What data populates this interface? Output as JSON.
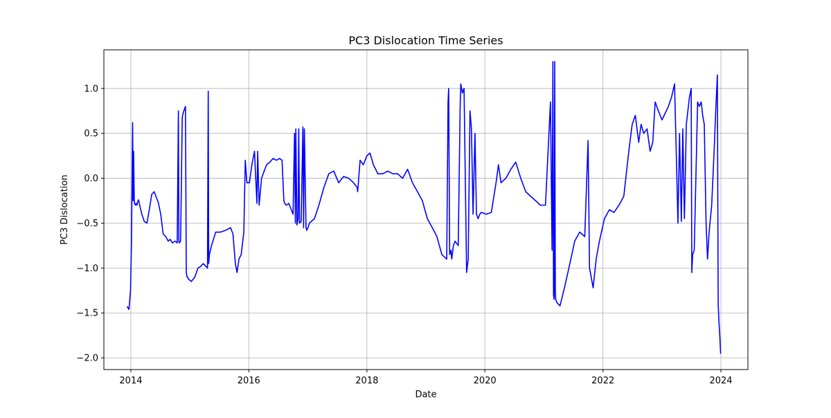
{
  "chart_data": {
    "type": "line",
    "title": "PC3 Dislocation Time Series",
    "xlabel": "Date",
    "ylabel": "PC3 Dislocation",
    "xlim": [
      "2013-07-18",
      "2024-06-16"
    ],
    "ylim": [
      -2.13,
      1.43
    ],
    "x_ticks": [
      "2014",
      "2016",
      "2018",
      "2020",
      "2022",
      "2024"
    ],
    "y_ticks": [
      -2.0,
      -1.5,
      -1.0,
      -0.5,
      0.0,
      0.5,
      1.0
    ],
    "y_tick_labels": [
      "−2.0",
      "−1.5",
      "−1.0",
      "−0.5",
      "0.0",
      "0.5",
      "1.0"
    ],
    "grid": true,
    "legend": "none",
    "colors": {
      "line": "#0000ff",
      "grid": "#b0b0b0",
      "axes": "#000000"
    },
    "series": [
      {
        "x": [
          "2013-12-10",
          "2013-12-20",
          "2013-12-30",
          "2014-01-05",
          "2014-01-12",
          "2014-01-15",
          "2014-01-18",
          "2014-01-22",
          "2014-01-24",
          "2014-01-28",
          "2014-02-02",
          "2014-02-08",
          "2014-02-12",
          "2014-02-18",
          "2014-02-22",
          "2014-03-10",
          "2014-03-25",
          "2014-04-10",
          "2014-04-25",
          "2014-05-10",
          "2014-05-25",
          "2014-06-05",
          "2014-06-20",
          "2014-07-05",
          "2014-07-20",
          "2014-08-05",
          "2014-08-20",
          "2014-09-01",
          "2014-09-15",
          "2014-10-01",
          "2014-10-15",
          "2014-10-22",
          "2014-10-25",
          "2014-10-28",
          "2014-11-05",
          "2014-11-15",
          "2014-11-20",
          "2014-11-25",
          "2014-12-05",
          "2014-12-10",
          "2014-12-15",
          "2014-12-18",
          "2014-12-22",
          "2015-01-10",
          "2015-02-01",
          "2015-02-20",
          "2015-03-10",
          "2015-03-25",
          "2015-04-10",
          "2015-04-20",
          "2015-04-25",
          "2015-04-28",
          "2015-05-02",
          "2015-05-15",
          "2015-06-10",
          "2015-07-10",
          "2015-08-10",
          "2015-09-10",
          "2015-09-25",
          "2015-10-10",
          "2015-10-20",
          "2015-11-01",
          "2015-11-15",
          "2015-12-01",
          "2015-12-10",
          "2015-12-20",
          "2016-01-05",
          "2016-01-20",
          "2016-02-05",
          "2016-02-20",
          "2016-02-25",
          "2016-03-05",
          "2016-03-20",
          "2016-04-05",
          "2016-04-20",
          "2016-05-10",
          "2016-05-30",
          "2016-06-20",
          "2016-07-10",
          "2016-07-25",
          "2016-08-05",
          "2016-08-10",
          "2016-08-20",
          "2016-09-05",
          "2016-09-20",
          "2016-10-01",
          "2016-10-10",
          "2016-10-15",
          "2016-10-18",
          "2016-10-25",
          "2016-11-01",
          "2016-11-05",
          "2016-11-10",
          "2016-11-20",
          "2016-12-01",
          "2016-12-05",
          "2016-12-10",
          "2016-12-20",
          "2016-12-25",
          "2017-01-01",
          "2017-01-10",
          "2017-02-10",
          "2017-03-10",
          "2017-04-10",
          "2017-05-10",
          "2017-06-10",
          "2017-07-10",
          "2017-08-10",
          "2017-09-10",
          "2017-10-10",
          "2017-11-01",
          "2017-11-05",
          "2017-11-20",
          "2017-12-10",
          "2018-01-01",
          "2018-01-20",
          "2018-02-10",
          "2018-03-10",
          "2018-04-10",
          "2018-05-10",
          "2018-06-10",
          "2018-07-10",
          "2018-08-10",
          "2018-09-10",
          "2018-10-10",
          "2018-11-10",
          "2018-12-10",
          "2019-01-10",
          "2019-02-10",
          "2019-03-10",
          "2019-04-10",
          "2019-05-10",
          "2019-05-18",
          "2019-05-22",
          "2019-05-28",
          "2019-06-05",
          "2019-06-10",
          "2019-06-20",
          "2019-07-01",
          "2019-07-20",
          "2019-08-01",
          "2019-08-05",
          "2019-08-15",
          "2019-08-25",
          "2019-09-10",
          "2019-09-20",
          "2019-10-01",
          "2019-10-10",
          "2019-10-20",
          "2019-11-01",
          "2019-11-10",
          "2019-11-20",
          "2019-12-01",
          "2019-12-10",
          "2020-01-10",
          "2020-02-10",
          "2020-03-10",
          "2020-03-25",
          "2020-04-10",
          "2020-05-10",
          "2020-06-10",
          "2020-07-10",
          "2020-08-10",
          "2020-09-10",
          "2020-10-10",
          "2020-11-10",
          "2020-12-10",
          "2021-01-10",
          "2021-02-10",
          "2021-02-20",
          "2021-02-25",
          "2021-03-01",
          "2021-03-05",
          "2021-03-08",
          "2021-03-12",
          "2021-03-15",
          "2021-03-20",
          "2021-04-10",
          "2021-05-10",
          "2021-06-10",
          "2021-07-10",
          "2021-08-10",
          "2021-09-10",
          "2021-10-01",
          "2021-10-10",
          "2021-10-15",
          "2021-10-20",
          "2021-11-01",
          "2021-11-20",
          "2021-12-10",
          "2022-01-10",
          "2022-02-10",
          "2022-03-10",
          "2022-04-10",
          "2022-05-10",
          "2022-06-10",
          "2022-07-01",
          "2022-07-20",
          "2022-08-10",
          "2022-08-25",
          "2022-09-10",
          "2022-10-01",
          "2022-10-20",
          "2022-11-05",
          "2022-11-20",
          "2022-12-10",
          "2023-01-01",
          "2023-01-20",
          "2023-02-10",
          "2023-03-01",
          "2023-03-20",
          "2023-04-10",
          "2023-04-20",
          "2023-05-01",
          "2023-05-10",
          "2023-05-20",
          "2023-06-01",
          "2023-06-20",
          "2023-07-01",
          "2023-07-05",
          "2023-07-10",
          "2023-07-20",
          "2023-08-10",
          "2023-08-20",
          "2023-09-01",
          "2023-09-10",
          "2023-09-20",
          "2023-10-01",
          "2023-10-10",
          "2023-10-20",
          "2023-11-05",
          "2023-11-20",
          "2023-12-01",
          "2023-12-10",
          "2023-12-15",
          "2023-12-20",
          "2023-12-25",
          "2023-12-30"
        ],
        "y": [
          -1.43,
          -1.46,
          -1.25,
          -0.7,
          0.62,
          -0.25,
          0.3,
          -0.25,
          -0.28,
          -0.3,
          -0.28,
          -0.3,
          -0.26,
          -0.24,
          -0.28,
          -0.4,
          -0.48,
          -0.5,
          -0.35,
          -0.18,
          -0.15,
          -0.2,
          -0.27,
          -0.4,
          -0.62,
          -0.65,
          -0.7,
          -0.68,
          -0.72,
          -0.7,
          -0.72,
          0.75,
          -0.7,
          -0.72,
          -0.7,
          0.68,
          0.72,
          0.75,
          0.8,
          -1.05,
          -1.1,
          -1.1,
          -1.12,
          -1.15,
          -1.1,
          -1.0,
          -0.98,
          -0.95,
          -0.98,
          -1.0,
          0.97,
          -0.95,
          -0.85,
          -0.75,
          -0.6,
          -0.6,
          -0.58,
          -0.55,
          -0.62,
          -0.95,
          -1.05,
          -0.9,
          -0.85,
          -0.6,
          0.2,
          -0.05,
          -0.05,
          0.15,
          0.3,
          -0.28,
          0.3,
          -0.3,
          0.0,
          0.08,
          0.15,
          0.18,
          0.22,
          0.2,
          0.22,
          0.2,
          -0.25,
          -0.28,
          -0.3,
          -0.28,
          -0.35,
          -0.4,
          0.5,
          -0.5,
          0.55,
          -0.52,
          -0.45,
          0.55,
          -0.5,
          -0.48,
          0.57,
          -0.55,
          0.55,
          -0.55,
          -0.58,
          -0.55,
          -0.5,
          -0.45,
          -0.3,
          -0.1,
          0.05,
          0.08,
          -0.05,
          0.02,
          0.0,
          -0.05,
          -0.1,
          -0.15,
          0.2,
          0.15,
          0.25,
          0.28,
          0.15,
          0.05,
          0.05,
          0.08,
          0.05,
          0.05,
          0.0,
          0.1,
          -0.05,
          -0.15,
          -0.25,
          -0.45,
          -0.55,
          -0.65,
          -0.85,
          -0.9,
          0.85,
          1.0,
          -0.85,
          -0.8,
          -0.9,
          -0.75,
          -0.7,
          -0.75,
          0.8,
          1.05,
          0.95,
          1.0,
          -1.05,
          -0.9,
          0.75,
          0.55,
          -0.4,
          0.5,
          -0.4,
          -0.45,
          -0.4,
          -0.38,
          -0.4,
          -0.38,
          -0.05,
          0.15,
          -0.05,
          0.0,
          0.1,
          0.18,
          0.0,
          -0.15,
          -0.2,
          -0.25,
          -0.3,
          -0.3,
          0.85,
          -0.8,
          1.3,
          -1.3,
          -1.35,
          1.3,
          -1.25,
          -1.35,
          -1.38,
          -1.42,
          -1.2,
          -0.95,
          -0.7,
          -0.6,
          -0.65,
          0.42,
          -1.0,
          -1.05,
          -1.1,
          -1.22,
          -0.9,
          -0.7,
          -0.45,
          -0.35,
          -0.38,
          -0.3,
          -0.2,
          0.3,
          0.6,
          0.7,
          0.4,
          0.6,
          0.5,
          0.55,
          0.3,
          0.4,
          0.85,
          0.75,
          0.65,
          0.72,
          0.8,
          0.9,
          1.05,
          -0.5,
          0.5,
          -0.48,
          0.55,
          -0.45,
          0.6,
          0.9,
          1.0,
          -1.05,
          -0.85,
          -0.8,
          0.85,
          0.8,
          0.85,
          0.7,
          0.6,
          -0.5,
          -0.9,
          -0.6,
          -0.3,
          0.3,
          0.8,
          1.15,
          -1.4,
          -1.6,
          -1.75,
          -1.95
        ]
      }
    ]
  }
}
